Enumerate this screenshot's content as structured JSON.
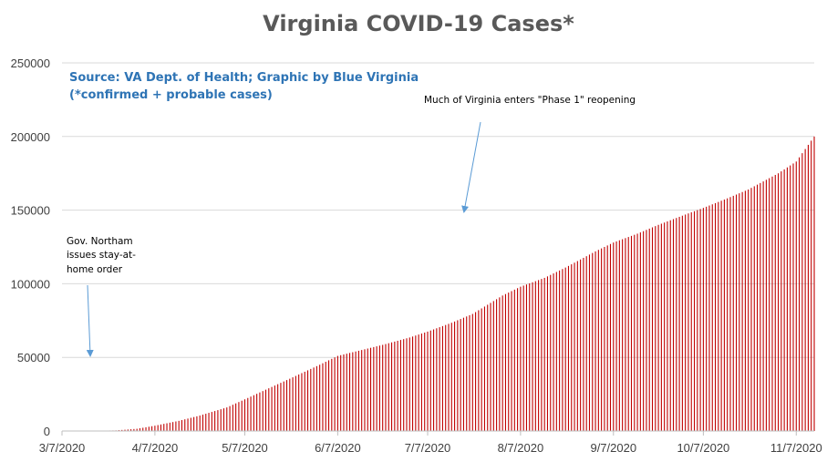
{
  "chart_data": {
    "type": "bar",
    "title": "Virginia COVID-19 Cases*",
    "source_lines": [
      "Source: VA Dept. of Health; Graphic by Blue Virginia",
      "(*confirmed + probable cases)"
    ],
    "xlabel": "",
    "ylabel": "",
    "ylim": [
      0,
      250000
    ],
    "y_ticks": [
      0,
      50000,
      100000,
      150000,
      200000,
      250000
    ],
    "y_tick_labels": [
      "0",
      "50000",
      "100000",
      "150000",
      "200000",
      "250000"
    ],
    "x_range": [
      "2020-03-07",
      "2020-11-13"
    ],
    "x_ticks": [
      "2020-03-07",
      "2020-04-07",
      "2020-05-07",
      "2020-06-07",
      "2020-07-07",
      "2020-08-07",
      "2020-09-07",
      "2020-10-07",
      "2020-11-07"
    ],
    "x_tick_labels": [
      "3/7/2020",
      "4/7/2020",
      "5/7/2020",
      "6/7/2020",
      "7/7/2020",
      "8/7/2020",
      "9/7/2020",
      "10/7/2020",
      "11/7/2020"
    ],
    "grid": true,
    "bar_color": "#c00000",
    "series": [
      {
        "values_anchor_dates": [
          "2020-03-07",
          "2020-03-15",
          "2020-03-25",
          "2020-04-01",
          "2020-04-07",
          "2020-04-15",
          "2020-04-22",
          "2020-05-01",
          "2020-05-07",
          "2020-05-15",
          "2020-05-22",
          "2020-06-01",
          "2020-06-07",
          "2020-06-15",
          "2020-06-22",
          "2020-07-01",
          "2020-07-07",
          "2020-07-15",
          "2020-07-22",
          "2020-08-01",
          "2020-08-07",
          "2020-08-15",
          "2020-08-22",
          "2020-09-01",
          "2020-09-07",
          "2020-09-15",
          "2020-09-22",
          "2020-10-01",
          "2020-10-07",
          "2020-10-15",
          "2020-10-22",
          "2020-11-01",
          "2020-11-07",
          "2020-11-13"
        ],
        "values_anchor_cases": [
          0,
          50,
          400,
          1500,
          3600,
          6900,
          10500,
          16000,
          21500,
          29000,
          35500,
          45000,
          51000,
          55000,
          58500,
          63500,
          67500,
          73500,
          79500,
          92000,
          98000,
          104000,
          111000,
          122000,
          128000,
          134000,
          140000,
          147000,
          151500,
          158000,
          164000,
          175000,
          183000,
          200000
        ]
      }
    ],
    "annotations": [
      {
        "text_lines": [
          "Much of Virginia enters \"Phase 1\" reopening"
        ],
        "date": "2020-05-15"
      },
      {
        "text_lines": [
          "Gov. Northam",
          "issues stay-at-",
          "home order"
        ],
        "date": "2020-03-30"
      }
    ]
  }
}
